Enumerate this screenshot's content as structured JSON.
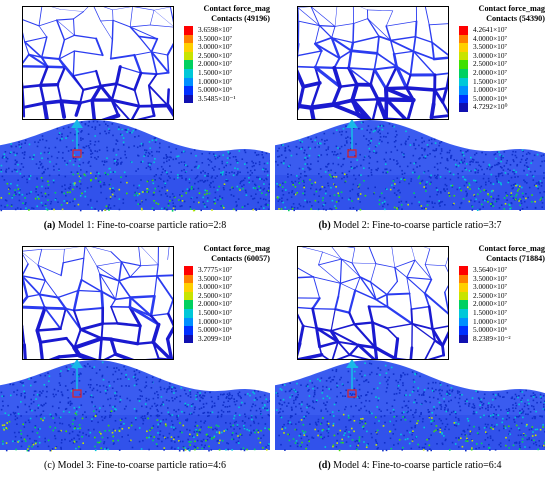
{
  "legend_title": "Contact force_mag",
  "legend_colors": [
    "#ff0000",
    "#ff8000",
    "#ffd000",
    "#c8e400",
    "#40e000",
    "#00d060",
    "#00c8d8",
    "#0090ff",
    "#0030ff",
    "#1010b0"
  ],
  "panels": [
    {
      "id": "a",
      "caption_prefix": "(a)",
      "caption_text": "Model 1: Fine-to-coarse particle ratio=2:8",
      "contacts_label": "Contacts (49196)",
      "legend_labels": [
        "3.6598×10⁷",
        "3.5000×10⁷",
        "3.0000×10⁷",
        "2.5000×10⁷",
        "2.0000×10⁷",
        "1.5000×10⁷",
        "1.0000×10⁷",
        "5.0000×10⁶",
        "3.5485×10⁻¹"
      ],
      "thickness": 1.0
    },
    {
      "id": "b",
      "caption_prefix": "(b)",
      "caption_text": "Model 2: Fine-to-coarse particle ratio=3:7",
      "contacts_label": "Contacts (54390)",
      "legend_labels": [
        "4.2641×10⁷",
        "4.0000×10⁷",
        "3.5000×10⁷",
        "3.0000×10⁷",
        "2.5000×10⁷",
        "2.0000×10⁷",
        "1.5000×10⁷",
        "1.0000×10⁷",
        "5.0000×10⁶",
        "4.7292×10⁰"
      ],
      "thickness": 1.35
    },
    {
      "id": "c",
      "caption_prefix": "(c)",
      "caption_text": "Model 3: Fine-to-coarse particle ratio=4:6",
      "contacts_label": "Contacts (60057)",
      "legend_labels": [
        "3.7775×10⁷",
        "3.5000×10⁷",
        "3.0000×10⁷",
        "2.5000×10⁷",
        "2.0000×10⁷",
        "1.5000×10⁷",
        "1.0000×10⁷",
        "5.0000×10⁶",
        "3.2099×10¹"
      ],
      "thickness": 1.15
    },
    {
      "id": "d",
      "caption_prefix": "(d)",
      "caption_text": "Model 4: Fine-to-coarse particle ratio=6:4",
      "contacts_label": "Contacts (71884)",
      "legend_labels": [
        "3.5640×10⁷",
        "3.5000×10⁷",
        "3.0000×10⁷",
        "2.5000×10⁷",
        "2.0000×10⁷",
        "1.5000×10⁷",
        "1.0000×10⁷",
        "5.0000×10⁶",
        "8.2389×10⁻²"
      ],
      "thickness": 0.85
    }
  ]
}
